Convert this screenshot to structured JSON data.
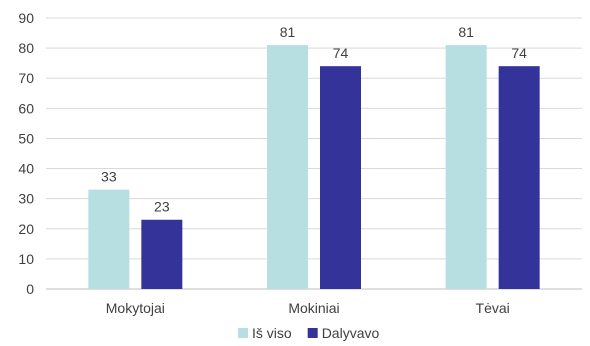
{
  "chart_data": {
    "type": "bar",
    "title": "",
    "xlabel": "",
    "ylabel": "",
    "categories": [
      "Mokytojai",
      "Mokiniai",
      "Tėvai"
    ],
    "series": [
      {
        "name": "Iš viso",
        "values": [
          33,
          81,
          81
        ],
        "color": "#b7dfe2"
      },
      {
        "name": "Dalyvavo",
        "values": [
          23,
          74,
          74
        ],
        "color": "#33339a"
      }
    ],
    "ylim": [
      0,
      90
    ],
    "yticks": [
      0,
      10,
      20,
      30,
      40,
      50,
      60,
      70,
      80,
      90
    ],
    "grid": true,
    "gridColor": "#d9d9d9",
    "axisColor": "#bfbfbf",
    "data_labels": true,
    "legend": "bottom"
  }
}
